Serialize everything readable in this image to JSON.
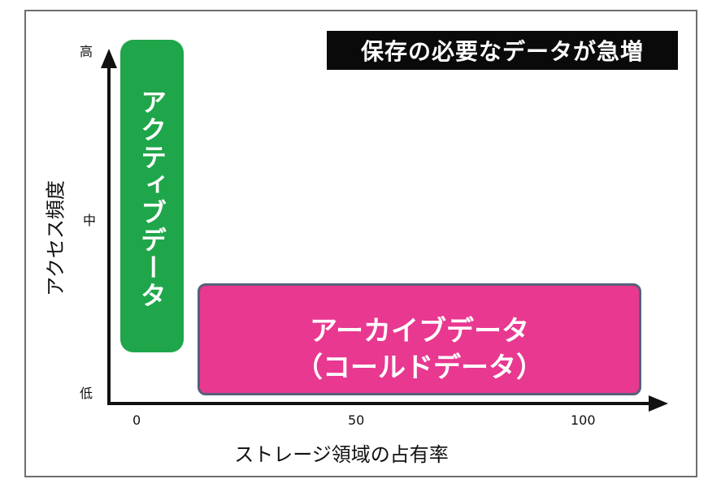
{
  "title": "保存の必要なデータが急増",
  "axes": {
    "y_label": "アクセス頻度",
    "y_ticks": [
      "高",
      "中",
      "低"
    ],
    "x_label": "ストレージ領域の占有率",
    "x_ticks": [
      "0",
      "50",
      "100"
    ]
  },
  "boxes": {
    "active": {
      "label": "アクティブデータ",
      "color": "#1fa64a"
    },
    "archive": {
      "label_line1": "アーカイブデータ",
      "label_line2": "（コールドデータ）",
      "color": "#e83890",
      "border_color": "#55607a"
    }
  },
  "colors": {
    "axis": "#111111",
    "title_bg": "#0a0a0a",
    "frame": "#6e6e6e"
  }
}
